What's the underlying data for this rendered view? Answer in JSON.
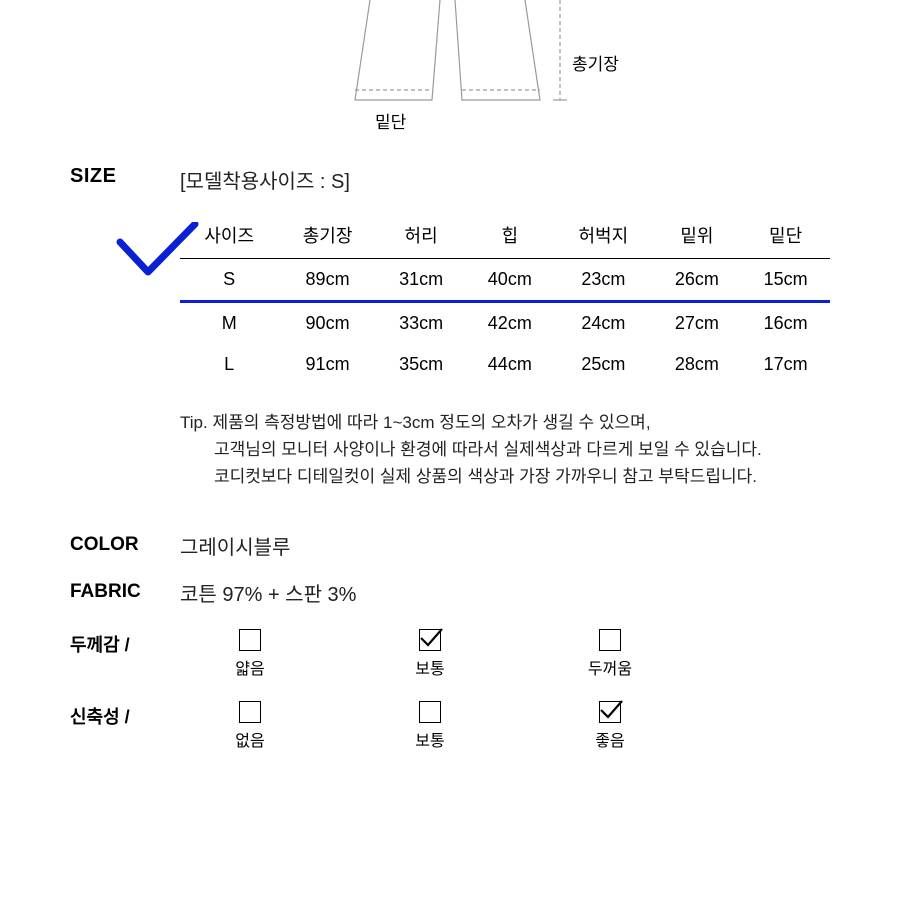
{
  "diagram": {
    "hem_label": "밑단",
    "length_label": "총기장",
    "stroke": "#9a9a9a",
    "dash": "4,3"
  },
  "size": {
    "heading": "SIZE",
    "model_note": "[모델착용사이즈 : S]",
    "columns": [
      "사이즈",
      "총기장",
      "허리",
      "힙",
      "허벅지",
      "밑위",
      "밑단"
    ],
    "rows": [
      [
        "S",
        "89cm",
        "31cm",
        "40cm",
        "23cm",
        "26cm",
        "15cm"
      ],
      [
        "M",
        "90cm",
        "33cm",
        "42cm",
        "24cm",
        "27cm",
        "16cm"
      ],
      [
        "L",
        "91cm",
        "35cm",
        "44cm",
        "25cm",
        "28cm",
        "17cm"
      ]
    ],
    "highlight_row_index": 0,
    "highlight_color": "#0b1fd4",
    "check_color": "#0b1fd4"
  },
  "tip": {
    "prefix": "Tip.",
    "lines": [
      "제품의 측정방법에 따라 1~3cm 정도의 오차가 생길 수 있으며,",
      "고객님의 모니터 사양이나 환경에 따라서 실제색상과 다르게 보일 수 있습니다.",
      "코디컷보다 디테일컷이 실제 상품의 색상과 가장 가까우니 참고 부탁드립니다."
    ]
  },
  "color": {
    "heading": "COLOR",
    "value": "그레이시블루"
  },
  "fabric": {
    "heading": "FABRIC",
    "value": "코튼 97% + 스판 3%"
  },
  "attributes": [
    {
      "label": "두께감 /",
      "options": [
        {
          "label": "얇음",
          "checked": false
        },
        {
          "label": "보통",
          "checked": true
        },
        {
          "label": "두꺼움",
          "checked": false
        }
      ]
    },
    {
      "label": "신축성 /",
      "options": [
        {
          "label": "없음",
          "checked": false
        },
        {
          "label": "보통",
          "checked": false
        },
        {
          "label": "좋음",
          "checked": true
        }
      ]
    }
  ]
}
